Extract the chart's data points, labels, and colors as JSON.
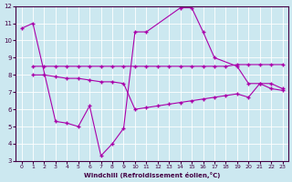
{
  "xlabel": "Windchill (Refroidissement éolien,°C)",
  "xlim": [
    -0.5,
    23.5
  ],
  "ylim": [
    3,
    12
  ],
  "yticks": [
    3,
    4,
    5,
    6,
    7,
    8,
    9,
    10,
    11,
    12
  ],
  "xticks": [
    0,
    1,
    2,
    3,
    4,
    5,
    6,
    7,
    8,
    9,
    10,
    11,
    12,
    13,
    14,
    15,
    16,
    17,
    18,
    19,
    20,
    21,
    22,
    23
  ],
  "bg_color": "#cce8f0",
  "line_color": "#aa00aa",
  "series": [
    {
      "x": [
        0,
        1,
        3,
        4,
        5,
        6,
        7,
        8,
        9,
        10,
        11,
        14,
        15,
        16,
        17,
        19,
        20,
        21,
        22,
        23
      ],
      "y": [
        10.7,
        11.0,
        5.3,
        5.2,
        5.0,
        6.2,
        3.3,
        4.0,
        4.9,
        10.5,
        10.5,
        11.9,
        11.9,
        10.5,
        9.0,
        8.5,
        7.5,
        7.5,
        7.5,
        7.2
      ]
    },
    {
      "x": [
        1,
        2,
        3,
        4,
        5,
        6,
        7,
        8,
        9,
        10,
        11,
        12,
        13,
        14,
        15,
        16,
        17,
        18,
        19,
        20,
        21,
        22,
        23
      ],
      "y": [
        8.5,
        8.5,
        8.5,
        8.5,
        8.5,
        8.5,
        8.5,
        8.5,
        8.5,
        8.5,
        8.5,
        8.5,
        8.5,
        8.5,
        8.5,
        8.5,
        8.5,
        8.5,
        8.6,
        8.6,
        8.6,
        8.6,
        8.6
      ]
    },
    {
      "x": [
        1,
        2,
        3,
        4,
        5,
        6,
        7,
        8,
        9,
        10,
        11,
        12,
        13,
        14,
        15,
        16,
        17,
        18,
        19,
        20,
        21,
        22,
        23
      ],
      "y": [
        8.0,
        8.0,
        7.9,
        7.8,
        7.8,
        7.7,
        7.6,
        7.6,
        7.5,
        6.0,
        6.1,
        6.2,
        6.3,
        6.4,
        6.5,
        6.6,
        6.7,
        6.8,
        6.9,
        6.7,
        7.5,
        7.2,
        7.1
      ]
    }
  ]
}
